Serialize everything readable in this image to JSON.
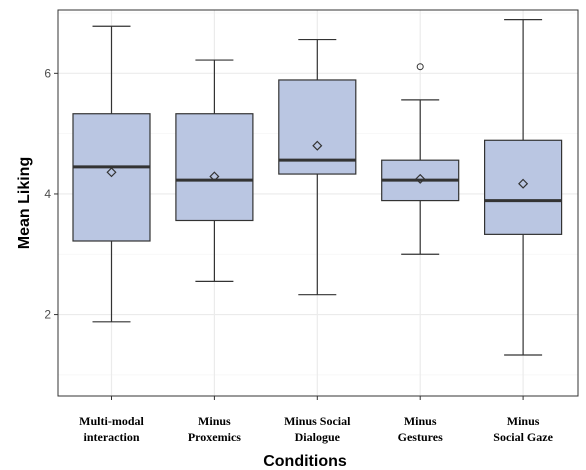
{
  "chart_data": {
    "type": "box",
    "title": "",
    "xlabel": "Conditions",
    "ylabel": "Mean Liking",
    "ylim": [
      0.65,
      7.05
    ],
    "y_ticks": [
      2,
      4,
      6
    ],
    "y_tick_labels": [
      "2",
      "4",
      "6"
    ],
    "grid": true,
    "legend": "none",
    "categories": [
      "Multi-modal interaction",
      "Minus Proxemics",
      "Minus Social Dialogue",
      "Minus Gestures",
      "Minus Social Gaze"
    ],
    "category_label_lines": [
      [
        "Multi-modal",
        "interaction"
      ],
      [
        "Minus",
        "Proxemics"
      ],
      [
        "Minus Social",
        "Dialogue"
      ],
      [
        "Minus",
        "Gestures"
      ],
      [
        "Minus",
        "Social Gaze"
      ]
    ],
    "boxes": [
      {
        "whisker_low": 1.88,
        "q1": 3.22,
        "median": 4.45,
        "q3": 5.33,
        "whisker_high": 6.78,
        "mean": 4.36,
        "outliers": []
      },
      {
        "whisker_low": 2.55,
        "q1": 3.56,
        "median": 4.23,
        "q3": 5.33,
        "whisker_high": 6.22,
        "mean": 4.29,
        "outliers": []
      },
      {
        "whisker_low": 2.33,
        "q1": 4.33,
        "median": 4.56,
        "q3": 5.89,
        "whisker_high": 6.56,
        "mean": 4.8,
        "outliers": []
      },
      {
        "whisker_low": 3.0,
        "q1": 3.89,
        "median": 4.23,
        "q3": 4.56,
        "whisker_high": 5.56,
        "mean": 4.25,
        "outliers": [
          6.11
        ]
      },
      {
        "whisker_low": 1.33,
        "q1": 3.33,
        "median": 3.89,
        "q3": 4.89,
        "whisker_high": 6.89,
        "mean": 4.17,
        "outliers": []
      }
    ],
    "colors": {
      "box_fill": "#bac6e2",
      "box_stroke": "#333333",
      "median": "#333333",
      "panel_border": "#333333",
      "grid_major": "#ebebeb",
      "grid_minor": "#f5f5f5"
    }
  }
}
